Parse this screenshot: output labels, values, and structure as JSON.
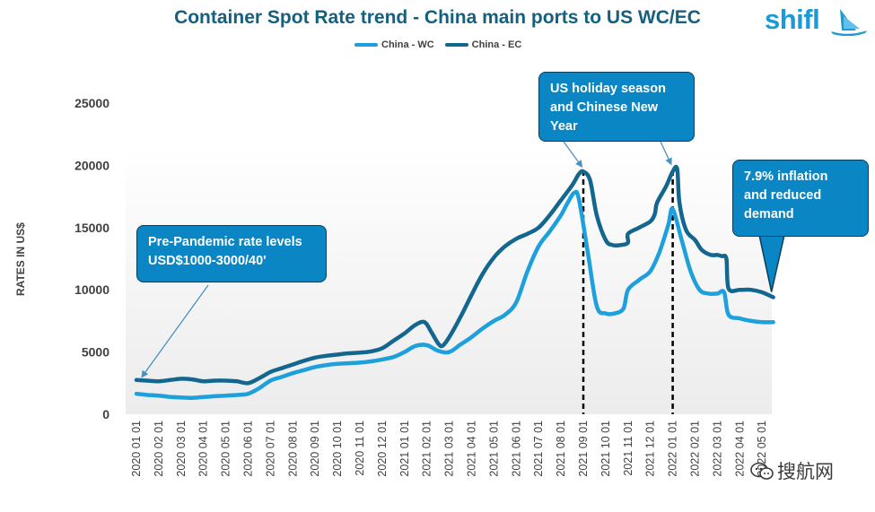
{
  "title": "Container Spot Rate trend - China main ports to US WC/EC",
  "brand": "shifl",
  "watermark": "搜航网",
  "chart_data": {
    "type": "line",
    "title": "Container Spot Rate trend - China main ports to US WC/EC",
    "xlabel": "",
    "ylabel": "RATES IN US$",
    "ylim": [
      0,
      25000
    ],
    "yticks": [
      0,
      5000,
      10000,
      15000,
      20000,
      25000
    ],
    "grid": false,
    "legend": "top-center",
    "categories": [
      "2020 01 01",
      "2020 02 01",
      "2020 03 01",
      "2020 04 01",
      "2020 05 01",
      "2020 06 01",
      "2020 07 01",
      "2020 08 01",
      "2020 09 01",
      "2020 10 01",
      "2020 11 01",
      "2020 12 01",
      "2021 01 01",
      "2021 02 01",
      "2021 03 01",
      "2021 04 01",
      "2021 05 01",
      "2021 06 01",
      "2021 07 01",
      "2021 08 01",
      "2021 09 01",
      "2021 10 01",
      "2021 11 01",
      "2021 12 01",
      "2022 01 01",
      "2022 02 01",
      "2022 03 01",
      "2022 04 01",
      "2022 05 01"
    ],
    "series": [
      {
        "name": "China - WC",
        "color": "#1ea0dc",
        "points": [
          [
            0,
            1650
          ],
          [
            0.5,
            1550
          ],
          [
            1,
            1500
          ],
          [
            1.5,
            1400
          ],
          [
            2,
            1350
          ],
          [
            2.5,
            1320
          ],
          [
            3,
            1380
          ],
          [
            3.5,
            1450
          ],
          [
            4,
            1500
          ],
          [
            4.5,
            1550
          ],
          [
            5,
            1650
          ],
          [
            5.5,
            2100
          ],
          [
            6,
            2700
          ],
          [
            6.5,
            3000
          ],
          [
            7,
            3300
          ],
          [
            7.5,
            3550
          ],
          [
            8,
            3800
          ],
          [
            8.5,
            3950
          ],
          [
            9,
            4050
          ],
          [
            9.5,
            4100
          ],
          [
            10,
            4150
          ],
          [
            10.5,
            4250
          ],
          [
            11,
            4400
          ],
          [
            11.5,
            4600
          ],
          [
            12,
            5000
          ],
          [
            12.5,
            5500
          ],
          [
            13,
            5550
          ],
          [
            13.5,
            5100
          ],
          [
            14,
            5000
          ],
          [
            14.5,
            5600
          ],
          [
            15,
            6200
          ],
          [
            15.5,
            6900
          ],
          [
            16,
            7500
          ],
          [
            16.5,
            8000
          ],
          [
            17,
            9000
          ],
          [
            17.5,
            11500
          ],
          [
            18,
            13500
          ],
          [
            18.5,
            14700
          ],
          [
            19,
            16000
          ],
          [
            19.3,
            17000
          ],
          [
            19.6,
            17800
          ],
          [
            19.8,
            17300
          ],
          [
            20.2,
            13000
          ],
          [
            20.6,
            8700
          ],
          [
            21,
            8100
          ],
          [
            21.4,
            8100
          ],
          [
            21.8,
            8500
          ],
          [
            22,
            10000
          ],
          [
            22.5,
            10800
          ],
          [
            23,
            11500
          ],
          [
            23.4,
            13000
          ],
          [
            23.8,
            15200
          ],
          [
            24,
            16500
          ],
          [
            24.4,
            14000
          ],
          [
            24.8,
            11500
          ],
          [
            25.2,
            10000
          ],
          [
            25.6,
            9700
          ],
          [
            26,
            9700
          ],
          [
            26.3,
            9800
          ],
          [
            26.5,
            8000
          ],
          [
            27,
            7700
          ],
          [
            27.5,
            7500
          ],
          [
            28,
            7400
          ],
          [
            28.5,
            7400
          ]
        ]
      },
      {
        "name": "China - EC",
        "color": "#13678f",
        "points": [
          [
            0,
            2750
          ],
          [
            0.5,
            2700
          ],
          [
            1,
            2650
          ],
          [
            1.5,
            2750
          ],
          [
            2,
            2850
          ],
          [
            2.5,
            2800
          ],
          [
            3,
            2650
          ],
          [
            3.5,
            2700
          ],
          [
            4,
            2700
          ],
          [
            4.5,
            2650
          ],
          [
            5,
            2500
          ],
          [
            5.5,
            2900
          ],
          [
            6,
            3400
          ],
          [
            6.5,
            3700
          ],
          [
            7,
            4000
          ],
          [
            7.5,
            4300
          ],
          [
            8,
            4550
          ],
          [
            8.5,
            4700
          ],
          [
            9,
            4800
          ],
          [
            9.5,
            4900
          ],
          [
            10,
            4950
          ],
          [
            10.5,
            5050
          ],
          [
            11,
            5300
          ],
          [
            11.5,
            5900
          ],
          [
            12,
            6500
          ],
          [
            12.5,
            7200
          ],
          [
            12.9,
            7400
          ],
          [
            13.2,
            6600
          ],
          [
            13.5,
            5700
          ],
          [
            13.7,
            5500
          ],
          [
            14,
            6200
          ],
          [
            14.5,
            7800
          ],
          [
            15,
            9600
          ],
          [
            15.5,
            11300
          ],
          [
            16,
            12600
          ],
          [
            16.5,
            13500
          ],
          [
            17,
            14100
          ],
          [
            17.5,
            14500
          ],
          [
            18,
            15000
          ],
          [
            18.5,
            16000
          ],
          [
            19,
            17200
          ],
          [
            19.5,
            18400
          ],
          [
            19.8,
            19300
          ],
          [
            20,
            19500
          ],
          [
            20.3,
            18800
          ],
          [
            20.6,
            16000
          ],
          [
            21,
            14000
          ],
          [
            21.3,
            13600
          ],
          [
            21.7,
            13600
          ],
          [
            22,
            13800
          ],
          [
            22,
            14500
          ],
          [
            22.5,
            15000
          ],
          [
            23,
            15500
          ],
          [
            23.2,
            16100
          ],
          [
            23.3,
            17000
          ],
          [
            23.7,
            18300
          ],
          [
            24,
            19500
          ],
          [
            24.2,
            19700
          ],
          [
            24.3,
            17000
          ],
          [
            24.6,
            14800
          ],
          [
            25,
            14000
          ],
          [
            25.3,
            13200
          ],
          [
            25.7,
            12800
          ],
          [
            26,
            12800
          ],
          [
            26.2,
            12700
          ],
          [
            26.4,
            12500
          ],
          [
            26.5,
            10100
          ],
          [
            27,
            10000
          ],
          [
            27.5,
            10000
          ],
          [
            28,
            9800
          ],
          [
            28.5,
            9400
          ]
        ]
      }
    ],
    "annotations": [
      {
        "text": "Pre-Pandemic rate levels\nUSD$1000-3000/40'",
        "arrow_to": [
          0.1,
          2750
        ]
      },
      {
        "text": "US holiday season\nand Chinese New\nYear",
        "arrow_to": [
          [
            20,
            19500
          ],
          [
            24,
            19700
          ]
        ]
      },
      {
        "text": "7.9% inflation\nand reduced\ndemand",
        "arrow_to": [
          28.5,
          9400
        ]
      }
    ],
    "reference_lines": [
      {
        "x": "2021 09 01",
        "style": "dashed"
      },
      {
        "x": "2022 01 01",
        "style": "dashed"
      }
    ]
  }
}
